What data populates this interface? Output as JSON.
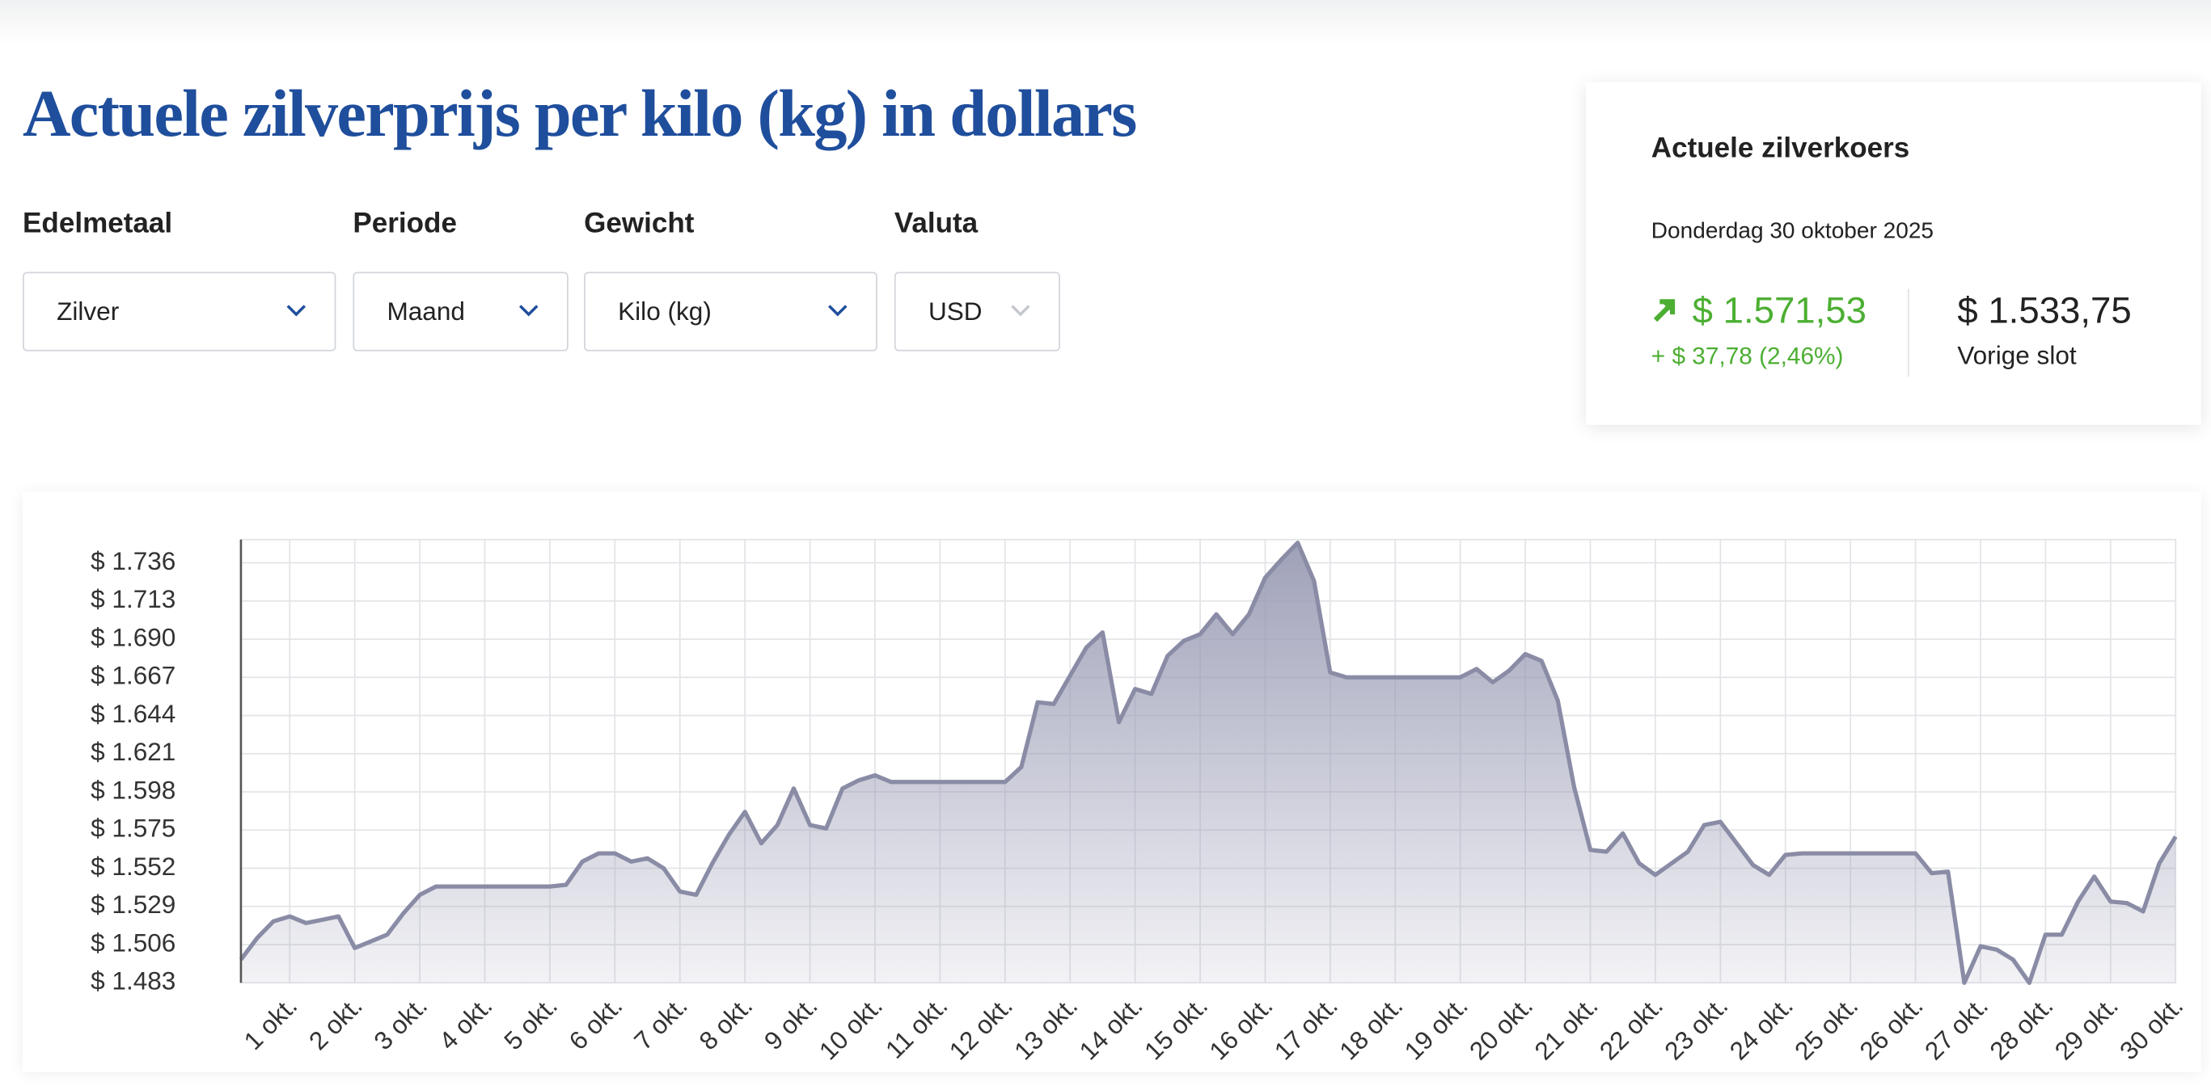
{
  "header": {
    "title": "Actuele zilverprijs per kilo (kg) in dollars"
  },
  "filters": [
    {
      "label": "Edelmetaal",
      "value": "Zilver"
    },
    {
      "label": "Periode",
      "value": "Maand"
    },
    {
      "label": "Gewicht",
      "value": "Kilo (kg)"
    },
    {
      "label": "Valuta",
      "value": "USD"
    }
  ],
  "card": {
    "title": "Actuele zilverkoers",
    "date": "Donderdag 30 oktober 2025",
    "price": "$ 1.571,53",
    "change": "+ $ 37,78 (2,46%)",
    "previous": "$ 1.533,75",
    "previous_label": "Vorige slot"
  },
  "chart_data": {
    "type": "area",
    "color": "#8a8ca6",
    "grid": true,
    "categories": [
      null,
      null,
      null,
      "1 okt.",
      null,
      null,
      null,
      "2 okt.",
      null,
      null,
      null,
      "3 okt.",
      null,
      null,
      null,
      "4 okt.",
      null,
      null,
      null,
      "5 okt.",
      null,
      null,
      null,
      "6 okt.",
      null,
      null,
      null,
      "7 okt.",
      null,
      null,
      null,
      "8 okt.",
      null,
      null,
      null,
      "9 okt.",
      null,
      null,
      null,
      "10 okt.",
      null,
      null,
      null,
      "11 okt.",
      null,
      null,
      null,
      "12 okt.",
      null,
      null,
      null,
      "13 okt.",
      null,
      null,
      null,
      "14 okt.",
      null,
      null,
      null,
      "15 okt.",
      null,
      null,
      null,
      "16 okt.",
      null,
      null,
      null,
      "17 okt.",
      null,
      null,
      null,
      "18 okt.",
      null,
      null,
      null,
      "19 okt.",
      null,
      null,
      null,
      "20 okt.",
      null,
      null,
      null,
      "21 okt.",
      null,
      null,
      null,
      "22 okt.",
      null,
      null,
      null,
      "23 okt.",
      null,
      null,
      null,
      "24 okt.",
      null,
      null,
      null,
      "25 okt.",
      null,
      null,
      null,
      "26 okt.",
      null,
      null,
      null,
      "27 okt.",
      null,
      null,
      null,
      "28 okt.",
      null,
      null,
      null,
      "29 okt.",
      null,
      null,
      null,
      "30 okt."
    ],
    "values": [
      1497,
      1510,
      1520,
      1523,
      1519,
      1521,
      1523,
      1504,
      1508,
      1512,
      1525,
      1536,
      1541,
      1541,
      1541,
      1541,
      1541,
      1541,
      1541,
      1541,
      1542,
      1556,
      1561,
      1561,
      1556,
      1558,
      1552,
      1538,
      1536,
      1555,
      1572,
      1586,
      1567,
      1578,
      1600,
      1578,
      1576,
      1600,
      1605,
      1608,
      1604,
      1604,
      1604,
      1604,
      1604,
      1604,
      1604,
      1604,
      1613,
      1652,
      1651,
      1668,
      1685,
      1694,
      1640,
      1660,
      1657,
      1680,
      1689,
      1693,
      1705,
      1693,
      1705,
      1727,
      1738,
      1748,
      1725,
      1670,
      1667,
      1667,
      1667,
      1667,
      1667,
      1667,
      1667,
      1667,
      1672,
      1664,
      1671,
      1681,
      1677,
      1653,
      1601,
      1563,
      1562,
      1573,
      1555,
      1548,
      1555,
      1562,
      1578,
      1580,
      1567,
      1554,
      1548,
      1560,
      1561,
      1561,
      1561,
      1561,
      1561,
      1561,
      1561,
      1561,
      1549,
      1550,
      1483,
      1505,
      1503,
      1497,
      1483,
      1512,
      1512,
      1532,
      1547,
      1532,
      1531,
      1526,
      1555,
      1571
    ],
    "ylim": [
      1483,
      1750
    ],
    "yticks": [
      {
        "value": 1483,
        "label": "$ 1.483"
      },
      {
        "value": 1506,
        "label": "$ 1.506"
      },
      {
        "value": 1529,
        "label": "$ 1.529"
      },
      {
        "value": 1552,
        "label": "$ 1.552"
      },
      {
        "value": 1575,
        "label": "$ 1.575"
      },
      {
        "value": 1598,
        "label": "$ 1.598"
      },
      {
        "value": 1621,
        "label": "$ 1.621"
      },
      {
        "value": 1644,
        "label": "$ 1.644"
      },
      {
        "value": 1667,
        "label": "$ 1.667"
      },
      {
        "value": 1690,
        "label": "$ 1.690"
      },
      {
        "value": 1713,
        "label": "$ 1.713"
      },
      {
        "value": 1736,
        "label": "$ 1.736"
      }
    ]
  }
}
